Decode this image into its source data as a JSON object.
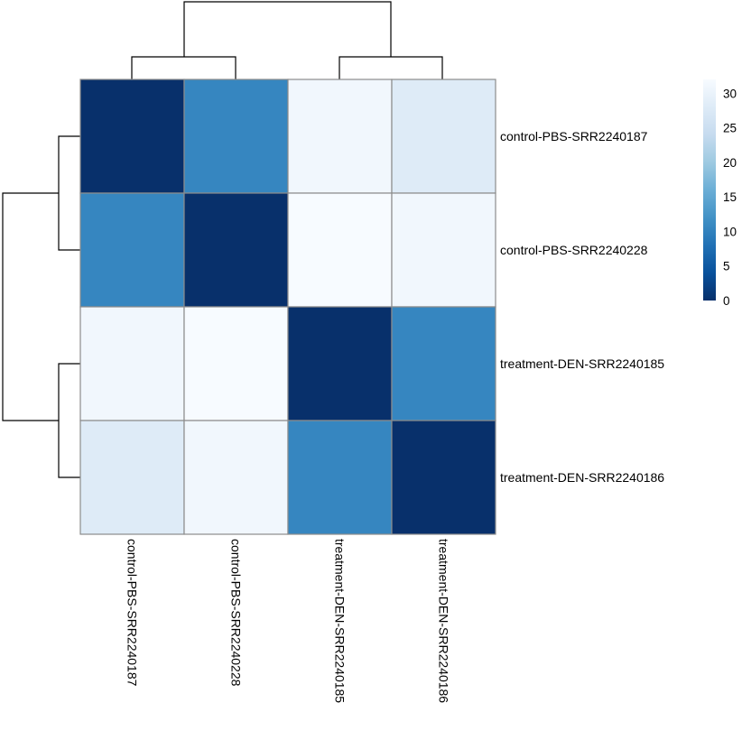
{
  "chart_data": {
    "type": "heatmap",
    "rows": [
      "control-PBS-SRR2240187",
      "control-PBS-SRR2240228",
      "treatment-DEN-SRR2240185",
      "treatment-DEN-SRR2240186"
    ],
    "columns": [
      "control-PBS-SRR2240187",
      "control-PBS-SRR2240228",
      "treatment-DEN-SRR2240185",
      "treatment-DEN-SRR2240186"
    ],
    "values": [
      [
        0,
        10.5,
        31,
        28
      ],
      [
        10.5,
        0,
        32,
        31
      ],
      [
        31,
        32,
        0,
        10.5
      ],
      [
        28,
        31,
        10.5,
        0
      ]
    ],
    "color_scale": {
      "min": 0,
      "max": 32,
      "stops": [
        "#08306b",
        "#08519c",
        "#2171b5",
        "#4292c6",
        "#6baed6",
        "#9ecae1",
        "#c6dbef",
        "#deebf7",
        "#f7fbff"
      ]
    },
    "legend": {
      "ticks": [
        {
          "value": 30,
          "label": "30"
        },
        {
          "value": 25,
          "label": "25"
        },
        {
          "value": 20,
          "label": "20"
        },
        {
          "value": 15,
          "label": "15"
        },
        {
          "value": 10,
          "label": "10"
        },
        {
          "value": 5,
          "label": "5"
        },
        {
          "value": 0,
          "label": "0"
        }
      ],
      "position": "top-right"
    },
    "column_dendrogram": {
      "clusters": [
        [
          0,
          1
        ],
        [
          2,
          3
        ]
      ]
    },
    "row_dendrogram": {
      "clusters": [
        [
          0,
          1
        ],
        [
          2,
          3
        ]
      ]
    }
  }
}
